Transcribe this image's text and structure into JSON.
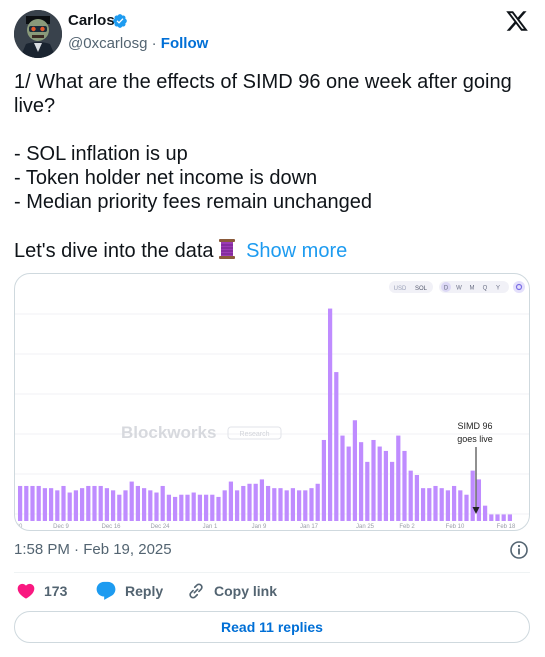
{
  "author": {
    "name": "Carlos",
    "handle": "@0xcarlosg",
    "separator": "·",
    "follow_label": "Follow"
  },
  "tweet": {
    "lines": [
      "1/ What are the effects of SIMD 96 one week after going live?",
      "- SOL inflation is up",
      "- Token holder net income is down",
      "- Median priority fees remain unchanged",
      "Let's dive into the data"
    ],
    "show_more": "Show more"
  },
  "chart_data": {
    "type": "bar",
    "watermark": "Blockworks",
    "watermark_tag": "Research",
    "currency_toggle": [
      "USD",
      "SOL"
    ],
    "period_toggle": [
      "D",
      "W",
      "M",
      "Q",
      "Y"
    ],
    "x_tick_labels": [
      "20",
      "Dec 9",
      "Dec 16",
      "Dec 24",
      "Jan 1",
      "Jan 9",
      "Jan 17",
      "Jan 25",
      "Feb 2",
      "Feb 10",
      "Feb 18"
    ],
    "annotation": [
      "SIMD 96",
      "goes live"
    ],
    "ylim": [
      0,
      100
    ],
    "series": [
      {
        "color": "#bf8cff",
        "values": [
          16,
          16,
          16,
          16,
          15,
          15,
          14,
          16,
          13,
          14,
          15,
          16,
          16,
          16,
          15,
          14,
          12,
          14,
          18,
          16,
          15,
          14,
          13,
          16,
          12,
          11,
          12,
          12,
          13,
          12,
          12,
          12,
          11,
          14,
          18,
          14,
          16,
          17,
          17,
          19,
          16,
          15,
          15,
          14,
          15,
          14,
          14,
          15,
          17,
          37,
          97,
          68,
          39,
          34,
          46,
          36,
          27,
          37,
          34,
          32,
          27,
          39,
          32,
          23,
          21,
          15,
          15,
          16,
          15,
          14,
          16,
          14,
          12,
          23,
          19,
          7,
          3,
          3,
          3,
          3
        ]
      }
    ]
  },
  "timestamp": "1:58 PM · Feb 19, 2025",
  "actions": {
    "likes": "173",
    "reply_label": "Reply",
    "copy_label": "Copy link",
    "read_replies": "Read 11 replies"
  }
}
